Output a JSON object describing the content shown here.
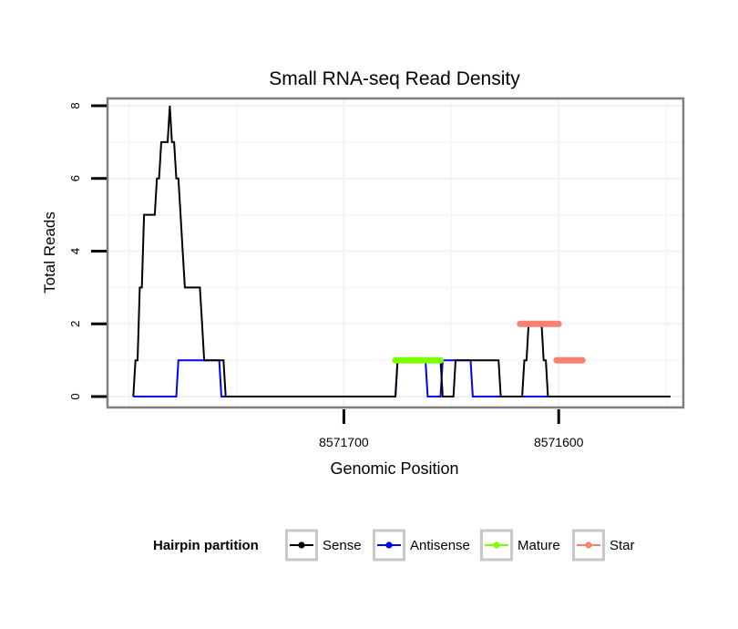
{
  "chart_data": {
    "type": "line",
    "title": "Small RNA-seq Read Density",
    "xlabel": "Genomic Position",
    "ylabel": "Total Reads",
    "x_reversed": true,
    "xlim": [
      8571810,
      8571542
    ],
    "ylim": [
      -0.3,
      8.2
    ],
    "x_ticks": [
      8571700,
      8571600
    ],
    "x_tick_labels": [
      "8571700",
      "8571600"
    ],
    "y_ticks": [
      0,
      2,
      4,
      6,
      8
    ],
    "y_tick_labels": [
      "0",
      "2",
      "4",
      "6",
      "8"
    ],
    "grid": true,
    "legend": {
      "title": "Hairpin partition",
      "position": "bottom",
      "entries": [
        "Sense",
        "Antisense",
        "Mature",
        "Star"
      ]
    },
    "colors": {
      "Sense": "#000000",
      "Antisense": "#0000ff",
      "Mature": "#7fff00",
      "Star": "#fa8072",
      "panel_border": "#7f7f7f",
      "grid": "#f2f2f2"
    },
    "series": [
      {
        "name": "Sense",
        "x": [
          8571798,
          8571797,
          8571796,
          8571795,
          8571794,
          8571793,
          8571792,
          8571791,
          8571790,
          8571789,
          8571788,
          8571787,
          8571786,
          8571785,
          8571784,
          8571783,
          8571782,
          8571781,
          8571780,
          8571779,
          8571778,
          8571777,
          8571776,
          8571775,
          8571774,
          8571773,
          8571772,
          8571771,
          8571770,
          8571769,
          8571768,
          8571767,
          8571766,
          8571765,
          8571764,
          8571763,
          8571762,
          8571761,
          8571760,
          8571759,
          8571758,
          8571757,
          8571756,
          8571755,
          8571754,
          8571676,
          8571675,
          8571674,
          8571673,
          8571655,
          8571654,
          8571650,
          8571649,
          8571648,
          8571647,
          8571646,
          8571645,
          8571631,
          8571630,
          8571629,
          8571628,
          8571627,
          8571617,
          8571616,
          8571615,
          8571614,
          8571613,
          8571612,
          8571608,
          8571607,
          8571606,
          8571605,
          8571587,
          8571586,
          8571548
        ],
        "values": [
          0,
          1,
          1,
          3,
          3,
          5,
          5,
          5,
          5,
          5,
          5,
          6,
          6,
          7,
          7,
          7,
          7,
          8,
          7,
          7,
          6,
          6,
          5,
          4,
          3,
          3,
          3,
          3,
          3,
          3,
          3,
          3,
          2,
          1,
          1,
          1,
          1,
          1,
          1,
          1,
          1,
          1,
          1,
          0,
          0,
          0,
          1,
          1,
          1,
          1,
          0,
          0,
          0,
          1,
          1,
          1,
          1,
          1,
          1,
          1,
          1,
          0,
          0,
          1,
          1,
          2,
          2,
          2,
          2,
          1,
          1,
          0,
          0,
          0,
          0
        ]
      },
      {
        "name": "Antisense",
        "x": [
          8571798,
          8571778,
          8571777,
          8571758,
          8571757,
          8571676,
          8571675,
          8571662,
          8571661,
          8571655,
          8571654,
          8571641,
          8571640,
          8571548
        ],
        "values": [
          0,
          0,
          1,
          1,
          0,
          0,
          1,
          1,
          0,
          0,
          1,
          1,
          0,
          0
        ]
      },
      {
        "name": "Mature",
        "x": [
          8571676,
          8571655
        ],
        "values": [
          1,
          1
        ]
      },
      {
        "name": "Star",
        "x": [
          8571618,
          8571600
        ],
        "values": [
          2,
          2
        ],
        "x2": [
          8571601,
          8571589
        ],
        "values2": [
          1,
          1
        ]
      }
    ]
  }
}
